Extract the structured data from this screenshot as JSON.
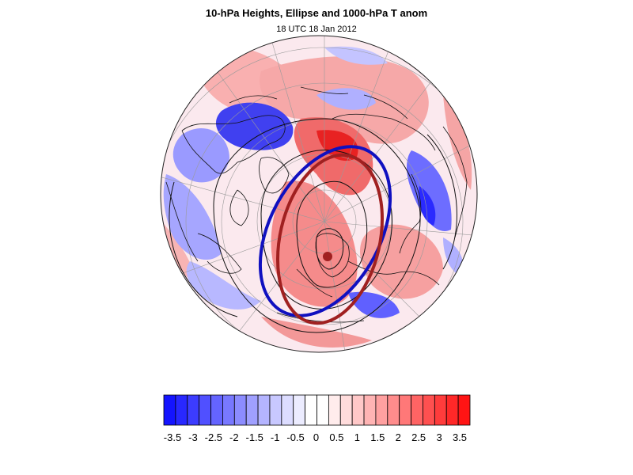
{
  "title": "10-hPa Heights, Ellipse and 1000-hPa T anom",
  "subtitle": "18 UTC 18 Jan 2012",
  "map": {
    "projection": "polar stereographic (north pole view)",
    "shading_variable": "1000-hPa T anom",
    "contour_variable": "10-hPa Heights",
    "overlays": [
      "black height contours",
      "blue ellipse",
      "dark red ellipse",
      "dark red center dot"
    ]
  },
  "colorbar": {
    "labels": [
      "-3.5",
      "-3",
      "-2.5",
      "-2",
      "-1.5",
      "-1",
      "-0.5",
      "0",
      "0.5",
      "1",
      "1.5",
      "2",
      "2.5",
      "3",
      "3.5"
    ],
    "colors": [
      "#1414ff",
      "#2828ff",
      "#3c3cff",
      "#5050ff",
      "#6464ff",
      "#7878ff",
      "#8c8cff",
      "#a0a0ff",
      "#b4b4ff",
      "#c8c8ff",
      "#dcdcff",
      "#ececff",
      "#ffffff",
      "#ffffff",
      "#ffecec",
      "#ffdcdc",
      "#ffc8c8",
      "#ffb4b4",
      "#ffa0a0",
      "#ff8c8c",
      "#ff7878",
      "#ff6464",
      "#ff5050",
      "#ff3c3c",
      "#ff2828",
      "#ff1414"
    ],
    "blue_ellipse_color": "#1010c0",
    "red_ellipse_color": "#a02020"
  }
}
